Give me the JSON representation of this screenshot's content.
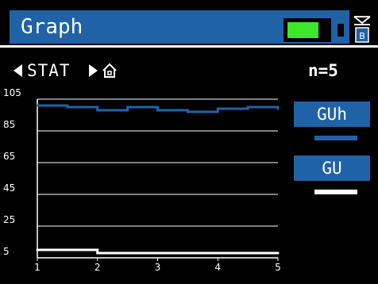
{
  "header": {
    "title": "Graph",
    "battery": {
      "level": 0.75,
      "color": "#3de82a"
    },
    "storage_icon": "sd-card-icon",
    "storage_label": "B"
  },
  "nav": {
    "label": "STAT",
    "left_icon": "triangle-left-icon",
    "right_icon": "triangle-right-icon",
    "home_icon": "home-icon"
  },
  "count_label": "n=5",
  "legend": [
    {
      "label": "GUh",
      "color": "#1f63a6"
    },
    {
      "label": "GU",
      "color": "#ffffff"
    }
  ],
  "chart_data": {
    "type": "line",
    "x": [
      1,
      1.5,
      2,
      2.5,
      3,
      3.5,
      4,
      4.5,
      5
    ],
    "xticks": [
      "1",
      "2",
      "3",
      "4",
      "5"
    ],
    "yticks": [
      "105",
      "85",
      "65",
      "45",
      "25",
      "5"
    ],
    "ylim": [
      5,
      105
    ],
    "xlim": [
      1,
      5
    ],
    "grid": true,
    "series": [
      {
        "name": "GUh",
        "color": "#1f63a6",
        "values": [
          101,
          100,
          98,
          100,
          98,
          97,
          99,
          100,
          99
        ]
      },
      {
        "name": "GU",
        "color": "#ffffff",
        "values": [
          10,
          10,
          8,
          8,
          8,
          8,
          8,
          8,
          8
        ]
      }
    ]
  }
}
